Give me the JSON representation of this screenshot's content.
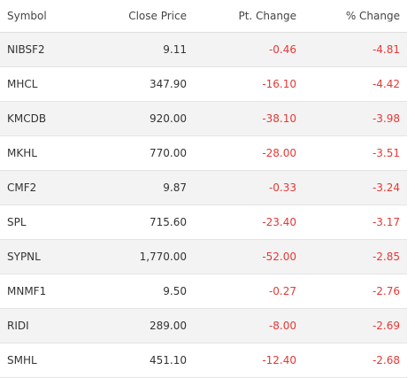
{
  "table": {
    "header": [
      "Symbol",
      "Close Price",
      "Pt. Change",
      "% Change"
    ],
    "rows": [
      [
        "NIBSF2",
        "9.11",
        "-0.46",
        "-4.81"
      ],
      [
        "MHCL",
        "347.90",
        "-16.10",
        "-4.42"
      ],
      [
        "KMCDB",
        "920.00",
        "-38.10",
        "-3.98"
      ],
      [
        "MKHL",
        "770.00",
        "-28.00",
        "-3.51"
      ],
      [
        "CMF2",
        "9.87",
        "-0.33",
        "-3.24"
      ],
      [
        "SPL",
        "715.60",
        "-23.40",
        "-3.17"
      ],
      [
        "SYPNL",
        "1,770.00",
        "-52.00",
        "-2.85"
      ],
      [
        "MNMF1",
        "9.50",
        "-0.27",
        "-2.76"
      ],
      [
        "RIDI",
        "289.00",
        "-8.00",
        "-2.69"
      ],
      [
        "SMHL",
        "451.10",
        "-12.40",
        "-2.68"
      ]
    ]
  }
}
